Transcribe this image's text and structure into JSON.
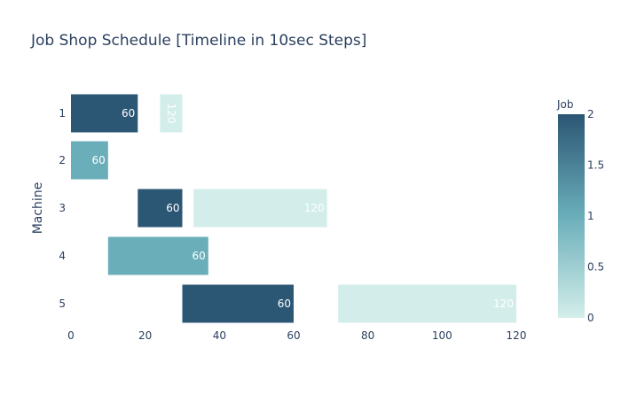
{
  "chart_data": {
    "type": "bar",
    "orientation": "horizontal",
    "title": "Job Shop Schedule [Timeline in 10sec Steps]",
    "xlabel": "",
    "ylabel": "Machine",
    "xlim": [
      0,
      120
    ],
    "xticks": [
      0,
      20,
      40,
      60,
      80,
      100,
      120
    ],
    "categories": [
      "1",
      "2",
      "3",
      "4",
      "5"
    ],
    "tasks": [
      {
        "machine": "1",
        "start": 0,
        "end": 18,
        "job": 2,
        "label": "60",
        "label_rotated": false
      },
      {
        "machine": "1",
        "start": 24,
        "end": 30,
        "job": 0,
        "label": "120",
        "label_rotated": true
      },
      {
        "machine": "2",
        "start": 0,
        "end": 10,
        "job": 1,
        "label": "60",
        "label_rotated": false
      },
      {
        "machine": "3",
        "start": 18,
        "end": 30,
        "job": 2,
        "label": "60",
        "label_rotated": false
      },
      {
        "machine": "3",
        "start": 33,
        "end": 69,
        "job": 0,
        "label": "120",
        "label_rotated": false
      },
      {
        "machine": "4",
        "start": 10,
        "end": 37,
        "job": 1,
        "label": "60",
        "label_rotated": false
      },
      {
        "machine": "5",
        "start": 30,
        "end": 60,
        "job": 2,
        "label": "60",
        "label_rotated": false
      },
      {
        "machine": "5",
        "start": 72,
        "end": 120,
        "job": 0,
        "label": "120",
        "label_rotated": false
      }
    ],
    "colorbar": {
      "title": "Job",
      "range": [
        0,
        2
      ],
      "ticks": [
        "0",
        "0.5",
        "1",
        "1.5",
        "2"
      ],
      "colorscale": [
        "#d3eeea",
        "#6aaeba",
        "#2b5674"
      ]
    },
    "grid": false,
    "legend": "none"
  }
}
